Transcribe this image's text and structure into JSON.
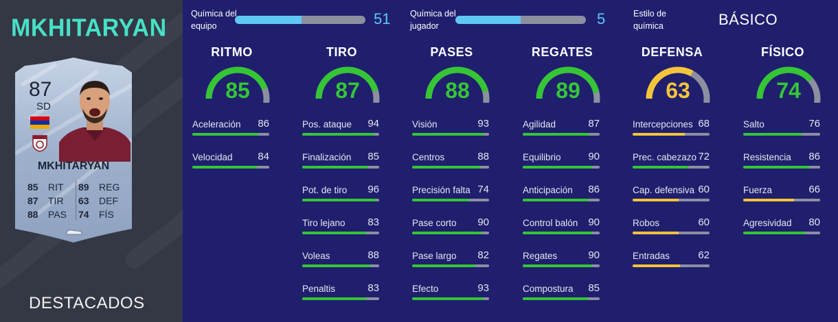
{
  "player": {
    "name": "MKHITARYAN",
    "card_name": "MKHITARYAN",
    "rating": "87",
    "position": "SD",
    "card_type": "DESTACADOS",
    "card_stats": [
      {
        "value": "85",
        "label": "RIT"
      },
      {
        "value": "89",
        "label": "REG"
      },
      {
        "value": "87",
        "label": "TIR"
      },
      {
        "value": "63",
        "label": "DEF"
      },
      {
        "value": "88",
        "label": "PAS"
      },
      {
        "value": "74",
        "label": "FÍS"
      }
    ]
  },
  "chemistry": {
    "team": {
      "label_line1": "Química del",
      "label_line2": "equipo",
      "value": "51",
      "fraction": 0.51
    },
    "player": {
      "label_line1": "Química del",
      "label_line2": "jugador",
      "value": "5",
      "fraction": 0.5
    },
    "style": {
      "label_line1": "Estilo de",
      "label_line2": "química",
      "value": "BÁSICO"
    }
  },
  "colors": {
    "green": "#35c535",
    "yellow": "#f5c43a",
    "bar_bg": "#8d8fa0",
    "chem_blue": "#5fc8f5",
    "accent_teal": "#47e1c6"
  },
  "categories": [
    {
      "title": "RITMO",
      "value": 85,
      "color": "#35c535",
      "stats": [
        {
          "name": "Aceleración",
          "value": 86
        },
        {
          "name": "Velocidad",
          "value": 84
        }
      ]
    },
    {
      "title": "TIRO",
      "value": 87,
      "color": "#35c535",
      "stats": [
        {
          "name": "Pos. ataque",
          "value": 94
        },
        {
          "name": "Finalización",
          "value": 85
        },
        {
          "name": "Pot. de tiro",
          "value": 96
        },
        {
          "name": "Tiro lejano",
          "value": 83
        },
        {
          "name": "Voleas",
          "value": 88
        },
        {
          "name": "Penaltis",
          "value": 83
        }
      ]
    },
    {
      "title": "PASES",
      "value": 88,
      "color": "#35c535",
      "stats": [
        {
          "name": "Visión",
          "value": 93
        },
        {
          "name": "Centros",
          "value": 88
        },
        {
          "name": "Precisión falta",
          "value": 74
        },
        {
          "name": "Pase corto",
          "value": 90
        },
        {
          "name": "Pase largo",
          "value": 82
        },
        {
          "name": "Efecto",
          "value": 93
        }
      ]
    },
    {
      "title": "REGATES",
      "value": 89,
      "color": "#35c535",
      "stats": [
        {
          "name": "Agilidad",
          "value": 87
        },
        {
          "name": "Equilibrio",
          "value": 90
        },
        {
          "name": "Anticipación",
          "value": 86
        },
        {
          "name": "Control balón",
          "value": 90
        },
        {
          "name": "Regates",
          "value": 90
        },
        {
          "name": "Compostura",
          "value": 85
        }
      ]
    },
    {
      "title": "DEFENSA",
      "value": 63,
      "color": "#f5c43a",
      "stats": [
        {
          "name": "Intercepciones",
          "value": 68
        },
        {
          "name": "Prec. cabezazo",
          "value": 72
        },
        {
          "name": "Cap. defensiva",
          "value": 60
        },
        {
          "name": "Robos",
          "value": 60
        },
        {
          "name": "Entradas",
          "value": 62
        }
      ]
    },
    {
      "title": "FÍSICO",
      "value": 74,
      "color": "#35c535",
      "stats": [
        {
          "name": "Salto",
          "value": 76
        },
        {
          "name": "Resistencia",
          "value": 86
        },
        {
          "name": "Fuerza",
          "value": 66
        },
        {
          "name": "Agresividad",
          "value": 80
        }
      ]
    }
  ]
}
